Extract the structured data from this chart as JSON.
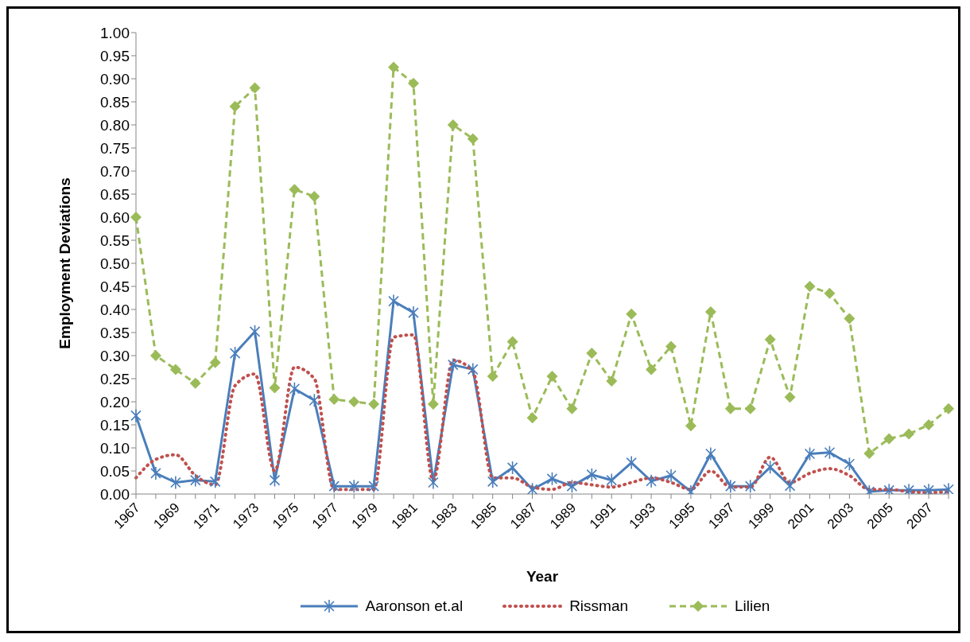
{
  "chart_data": {
    "type": "line",
    "xlabel": "Year",
    "ylabel": "Employment  Deviations",
    "categories": [
      "1967",
      null,
      "1969",
      null,
      "1971",
      null,
      "1973",
      null,
      "1975",
      null,
      "1977",
      null,
      "1979",
      null,
      "1981",
      null,
      "1983",
      null,
      "1985",
      null,
      "1987",
      null,
      "1989",
      null,
      "1991",
      null,
      "1993",
      null,
      "1995",
      null,
      "1997",
      null,
      "1999",
      null,
      "2001",
      null,
      "2003",
      null,
      "2005",
      null,
      "2007",
      null
    ],
    "series": [
      {
        "name": "Aaronson et.al",
        "color": "#4a7ebb",
        "marker": "cross",
        "line_style": "solid",
        "values": [
          0.17,
          0.045,
          0.025,
          0.03,
          0.027,
          0.305,
          0.352,
          0.03,
          0.228,
          0.203,
          0.017,
          0.017,
          0.017,
          0.418,
          0.393,
          0.025,
          0.28,
          0.27,
          0.027,
          0.057,
          0.01,
          0.033,
          0.017,
          0.042,
          0.03,
          0.068,
          0.028,
          0.04,
          0.005,
          0.087,
          0.017,
          0.017,
          0.058,
          0.018,
          0.087,
          0.09,
          0.065,
          0.005,
          0.008,
          0.008,
          0.008,
          0.01
        ]
      },
      {
        "name": "Rissman",
        "color": "#c0504d",
        "marker": "none",
        "line_style": "dotted",
        "values": [
          0.035,
          0.075,
          0.085,
          0.04,
          0.02,
          0.235,
          0.26,
          0.05,
          0.275,
          0.25,
          0.01,
          0.01,
          0.01,
          0.34,
          0.345,
          0.03,
          0.29,
          0.265,
          0.035,
          0.035,
          0.015,
          0.01,
          0.025,
          0.02,
          0.015,
          0.025,
          0.035,
          0.025,
          0.01,
          0.05,
          0.015,
          0.015,
          0.08,
          0.025,
          0.045,
          0.055,
          0.04,
          0.01,
          0.01,
          0.005,
          0.003,
          0.005
        ]
      },
      {
        "name": "Lilien",
        "color": "#9bbb59",
        "marker": "diamond",
        "line_style": "dashed",
        "values": [
          0.6,
          0.3,
          0.27,
          0.24,
          0.285,
          0.84,
          0.88,
          0.23,
          0.66,
          0.645,
          0.205,
          0.2,
          0.195,
          0.925,
          0.89,
          0.195,
          0.8,
          0.77,
          0.255,
          0.33,
          0.165,
          0.255,
          0.185,
          0.305,
          0.245,
          0.39,
          0.27,
          0.32,
          0.148,
          0.395,
          0.185,
          0.185,
          0.335,
          0.21,
          0.45,
          0.435,
          0.38,
          0.088,
          0.12,
          0.13,
          0.15,
          0.185
        ]
      }
    ],
    "ylim": [
      0,
      1
    ],
    "yticks": [
      {
        "value": 0,
        "label": "0.00"
      },
      {
        "value": 0.05,
        "label": "0.05"
      },
      {
        "value": 0.1,
        "label": "0.10"
      },
      {
        "value": 0.15,
        "label": "0.15"
      },
      {
        "value": 0.2,
        "label": "0.20"
      },
      {
        "value": 0.25,
        "label": "0.25"
      },
      {
        "value": 0.3,
        "label": "0.30"
      },
      {
        "value": 0.35,
        "label": "0.35"
      },
      {
        "value": 0.4,
        "label": "0.40"
      },
      {
        "value": 0.45,
        "label": "0.45"
      },
      {
        "value": 0.5,
        "label": "0.50"
      },
      {
        "value": 0.55,
        "label": "0.55"
      },
      {
        "value": 0.6,
        "label": "0.60"
      },
      {
        "value": 0.65,
        "label": "0.65"
      },
      {
        "value": 0.7,
        "label": "0.70"
      },
      {
        "value": 0.75,
        "label": "0.75"
      },
      {
        "value": 0.8,
        "label": "0.80"
      },
      {
        "value": 0.85,
        "label": "0.85"
      },
      {
        "value": 0.9,
        "label": "0.90"
      },
      {
        "value": 0.95,
        "label": "0.95"
      },
      {
        "value": 1,
        "label": "1.00"
      }
    ],
    "grid": false,
    "legend": "bottom"
  }
}
